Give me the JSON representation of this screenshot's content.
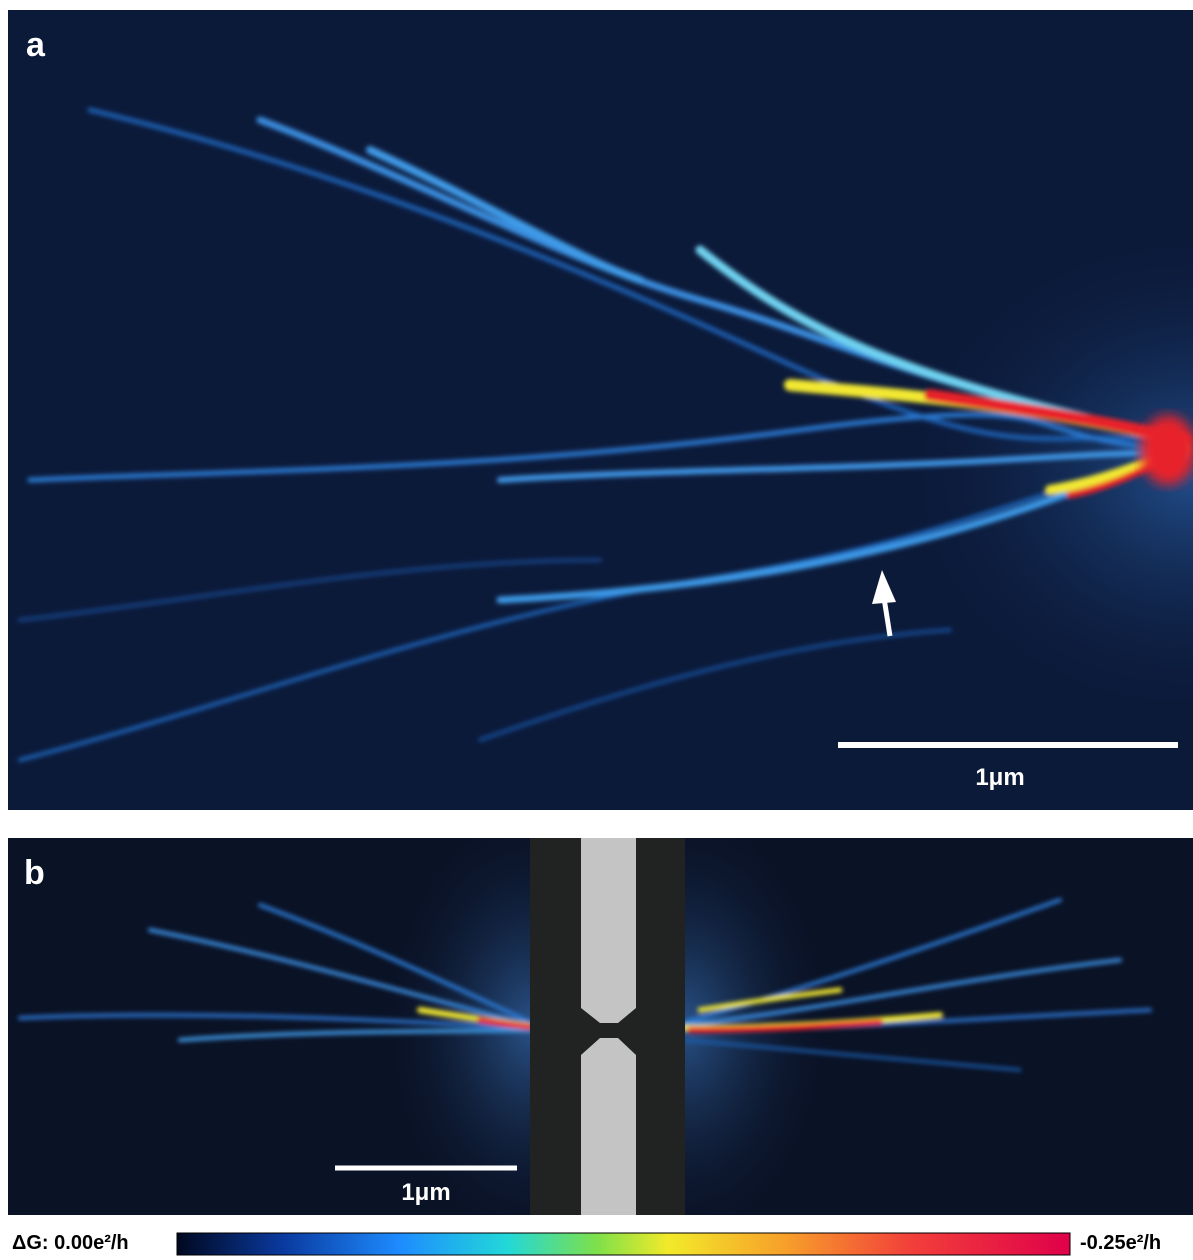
{
  "panel_a": {
    "label": "a",
    "scale_bar": "1μm"
  },
  "panel_b": {
    "label": "b",
    "scale_bar": "1μm"
  },
  "colorbar": {
    "min_label": "ΔG: 0.00e²/h",
    "max_label": "-0.25e²/h"
  }
}
